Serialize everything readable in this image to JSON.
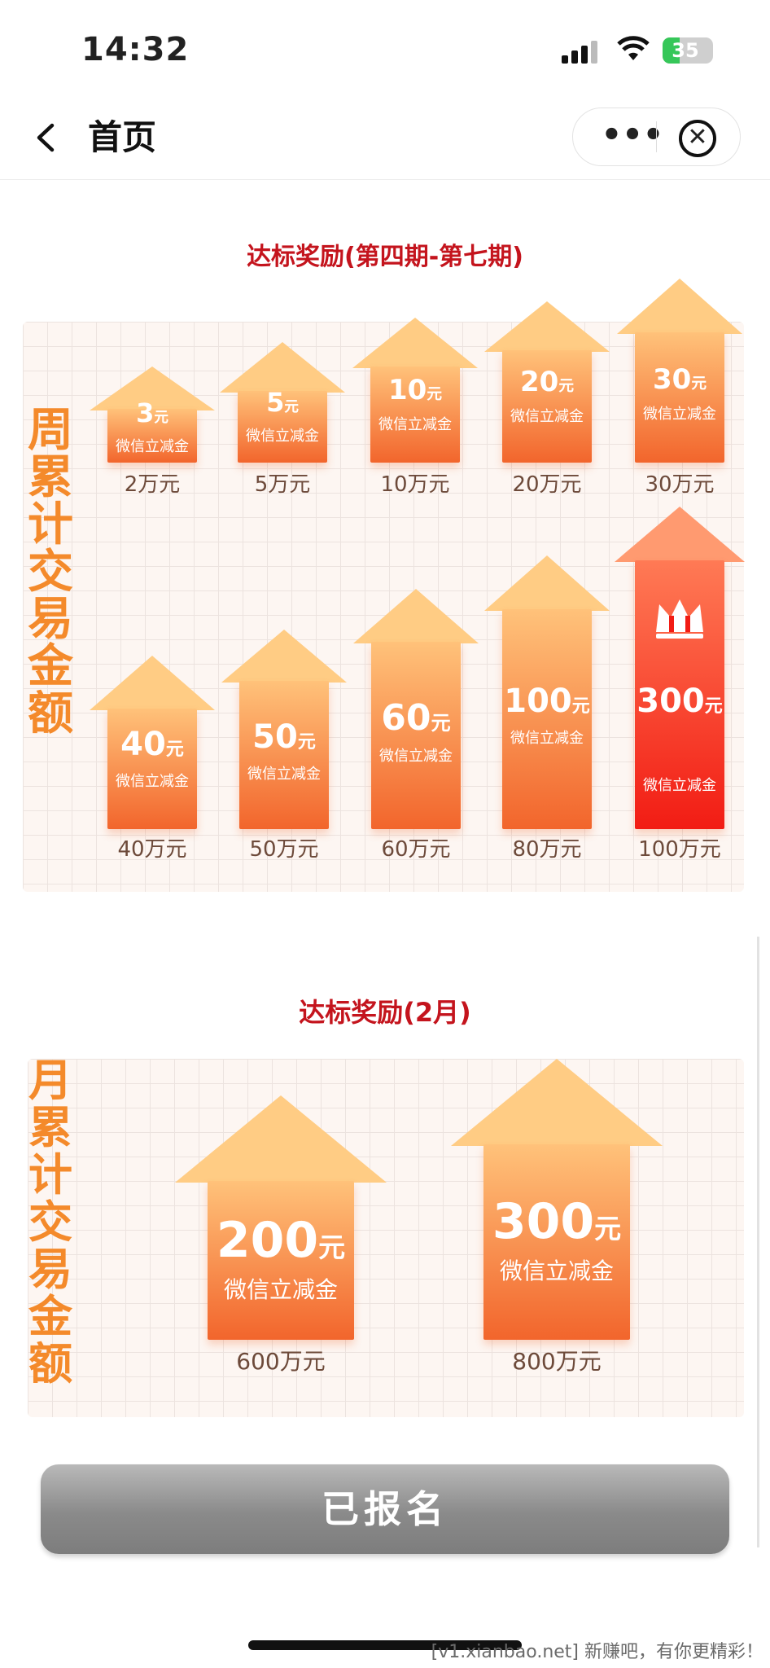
{
  "status_bar": {
    "time": "14:32",
    "battery": "35"
  },
  "nav": {
    "title": "首页",
    "back_icon": "chevron-left-icon",
    "more_label": "•••",
    "close_icon": "close-circle-icon"
  },
  "weekly": {
    "title": "达标奖励(第四期-第七期)",
    "side_label": [
      "周",
      "累",
      "计",
      "交",
      "易",
      "金",
      "额"
    ],
    "rewards": [
      {
        "amount": "3",
        "unit": "元",
        "desc": "微信立减金",
        "threshold": "2万元"
      },
      {
        "amount": "5",
        "unit": "元",
        "desc": "微信立减金",
        "threshold": "5万元"
      },
      {
        "amount": "10",
        "unit": "元",
        "desc": "微信立减金",
        "threshold": "10万元"
      },
      {
        "amount": "20",
        "unit": "元",
        "desc": "微信立减金",
        "threshold": "20万元"
      },
      {
        "amount": "30",
        "unit": "元",
        "desc": "微信立减金",
        "threshold": "30万元"
      },
      {
        "amount": "40",
        "unit": "元",
        "desc": "微信立减金",
        "threshold": "40万元"
      },
      {
        "amount": "50",
        "unit": "元",
        "desc": "微信立减金",
        "threshold": "50万元"
      },
      {
        "amount": "60",
        "unit": "元",
        "desc": "微信立减金",
        "threshold": "60万元"
      },
      {
        "amount": "100",
        "unit": "元",
        "desc": "微信立减金",
        "threshold": "80万元"
      },
      {
        "amount": "300",
        "unit": "元",
        "desc": "微信立减金",
        "threshold": "100万元",
        "icon": "crown-icon"
      }
    ]
  },
  "monthly": {
    "title": "达标奖励(2月)",
    "side_label": [
      "月",
      "累",
      "计",
      "交",
      "易",
      "金",
      "额"
    ],
    "rewards": [
      {
        "amount": "200",
        "unit": "元",
        "desc": "微信立减金",
        "threshold": "600万元"
      },
      {
        "amount": "300",
        "unit": "元",
        "desc": "微信立减金",
        "threshold": "800万元"
      }
    ]
  },
  "action": {
    "button_label": "已报名"
  },
  "watermark": "[v1.xianbao.net] 新赚吧，有你更精彩！",
  "colors": {
    "accent_red": "#c4141d",
    "arrow_top": "#ffcf8a",
    "arrow_bottom": "#f2652c",
    "premium_red": "#f2291c",
    "label_orange": "#f48a2b"
  }
}
